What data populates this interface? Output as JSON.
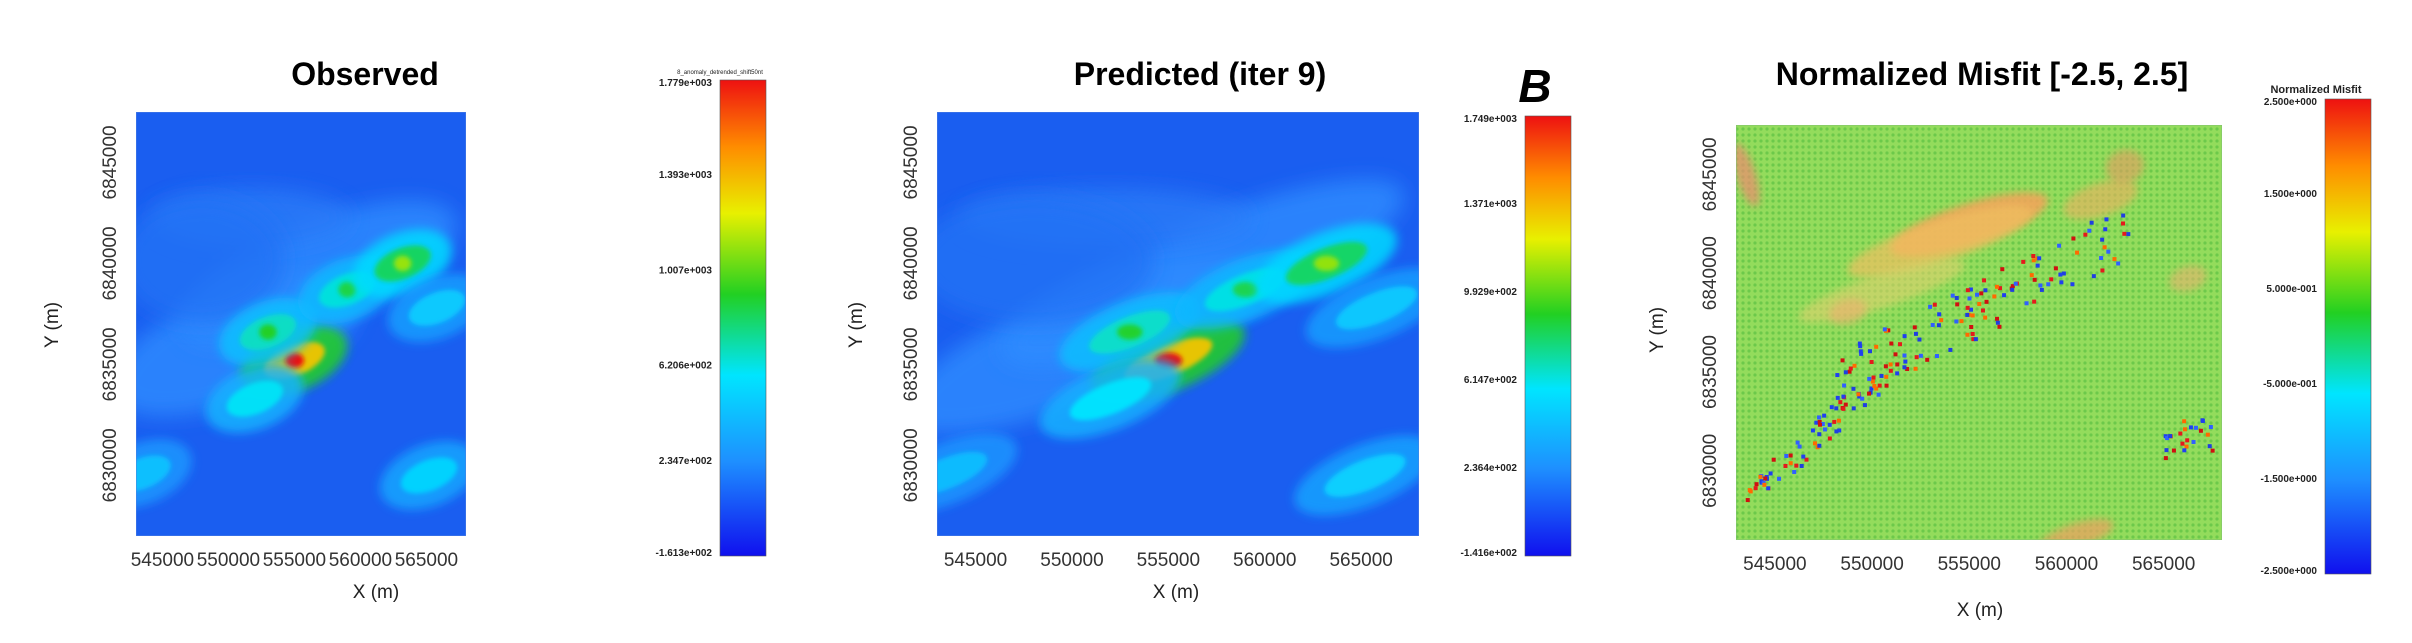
{
  "chart_data": [
    {
      "type": "heatmap",
      "title": "Observed",
      "xlabel": "X (m)",
      "ylabel": "Y (m)",
      "x_ticks": [
        "545000",
        "550000",
        "555000",
        "560000",
        "565000"
      ],
      "y_ticks": [
        "6845000",
        "6840000",
        "6835000",
        "6830000"
      ],
      "xlim": [
        543000,
        568000
      ],
      "ylim": [
        6826500,
        6847500
      ],
      "colorbar": {
        "title": "8_anomaly_detrended_shift50nt",
        "min": -161.3,
        "max": 1779,
        "tick_labels": [
          "1.779e+003",
          "1.393e+003",
          "1.007e+003",
          "6.206e+002",
          "2.347e+002",
          "-1.613e+002"
        ]
      },
      "anomalies": [
        {
          "x": 555000,
          "y": 6835200,
          "value": 1779
        },
        {
          "x": 553000,
          "y": 6836600,
          "value": 900
        },
        {
          "x": 559000,
          "y": 6838700,
          "value": 850
        },
        {
          "x": 563200,
          "y": 6840000,
          "value": 1100
        },
        {
          "x": 552000,
          "y": 6833300,
          "value": 800
        },
        {
          "x": 565800,
          "y": 6837800,
          "value": 650
        },
        {
          "x": 565200,
          "y": 6829500,
          "value": 700
        },
        {
          "x": 543500,
          "y": 6829600,
          "value": 600
        }
      ]
    },
    {
      "type": "heatmap",
      "title": "Predicted (iter 9)",
      "annotation": "B",
      "xlabel": "X (m)",
      "ylabel": "Y (m)",
      "x_ticks": [
        "545000",
        "550000",
        "555000",
        "560000",
        "565000"
      ],
      "y_ticks": [
        "6845000",
        "6840000",
        "6835000",
        "6830000"
      ],
      "xlim": [
        543000,
        568000
      ],
      "ylim": [
        6826500,
        6847500
      ],
      "colorbar": {
        "min": -141.6,
        "max": 1749,
        "tick_labels": [
          "1.749e+003",
          "1.371e+003",
          "9.929e+002",
          "6.147e+002",
          "2.364e+002",
          "-1.416e+002"
        ]
      },
      "anomalies": [
        {
          "x": 555000,
          "y": 6835200,
          "value": 1749
        },
        {
          "x": 553000,
          "y": 6836600,
          "value": 880
        },
        {
          "x": 559000,
          "y": 6838700,
          "value": 830
        },
        {
          "x": 563200,
          "y": 6840000,
          "value": 1080
        },
        {
          "x": 552000,
          "y": 6833300,
          "value": 780
        },
        {
          "x": 565800,
          "y": 6837800,
          "value": 640
        },
        {
          "x": 565200,
          "y": 6829500,
          "value": 680
        },
        {
          "x": 543500,
          "y": 6829600,
          "value": 580
        }
      ]
    },
    {
      "type": "heatmap",
      "title": "Normalized Misfit [-2.5, 2.5]",
      "xlabel": "X (m)",
      "ylabel": "Y (m)",
      "x_ticks": [
        "545000",
        "550000",
        "555000",
        "560000",
        "565000"
      ],
      "y_ticks": [
        "6845000",
        "6840000",
        "6835000",
        "6830000"
      ],
      "xlim": [
        543000,
        568000
      ],
      "ylim": [
        6826500,
        6847500
      ],
      "colorbar": {
        "title": "Normalized Misfit",
        "min": -2.5,
        "max": 2.5,
        "tick_labels": [
          "2.500e+000",
          "1.500e+000",
          "5.000e-001",
          "-5.000e-001",
          "-1.500e+000",
          "-2.500e+000"
        ]
      },
      "note": "Mostly near-zero misfit (green) with scattered positive (red/orange) and negative (blue) residuals along the NE-trending anomaly belt"
    }
  ]
}
